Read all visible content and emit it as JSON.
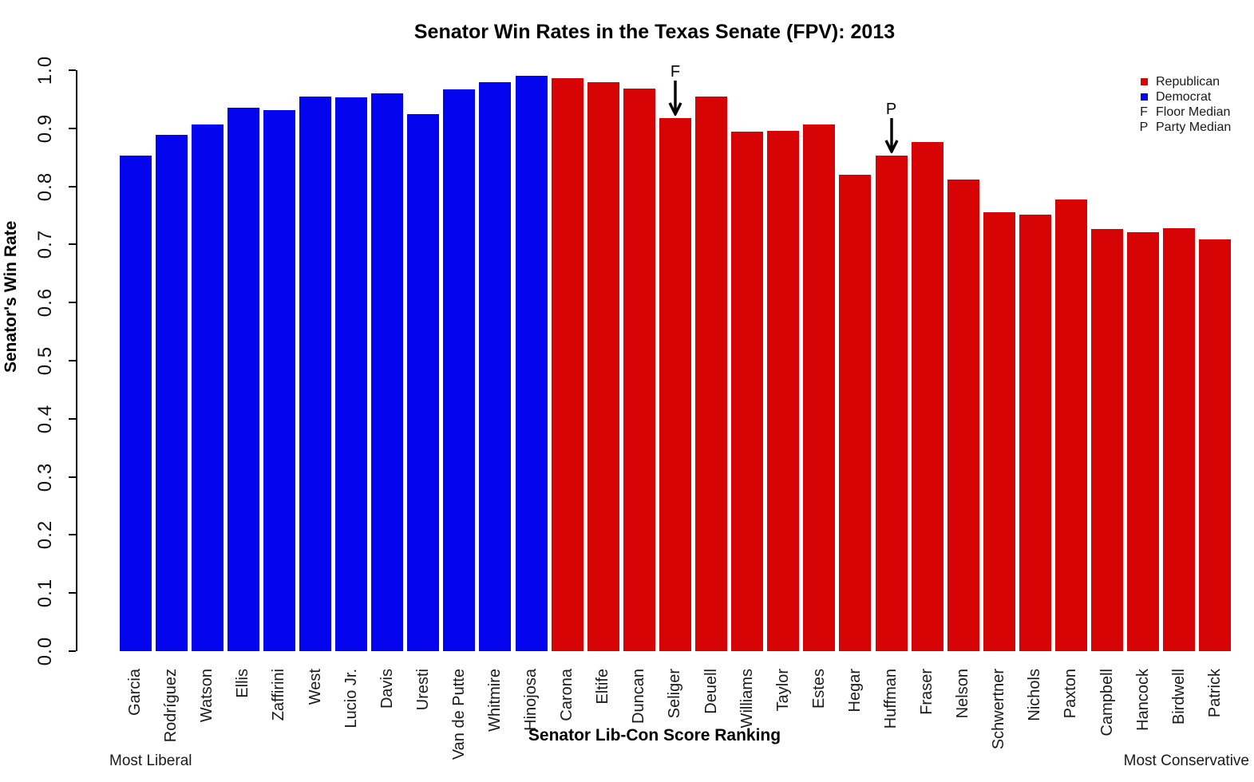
{
  "title": "Senator Win Rates in the Texas Senate (FPV): 2013",
  "axes": {
    "y_label": "Senator's Win Rate",
    "x_label": "Senator Lib-Con Score Ranking",
    "x_left_note": "Most Liberal",
    "x_right_note": "Most Conservative",
    "y_ticks": [
      "0.0",
      "0.1",
      "0.2",
      "0.3",
      "0.4",
      "0.5",
      "0.6",
      "0.7",
      "0.8",
      "0.9",
      "1.0"
    ]
  },
  "legend": {
    "items": [
      {
        "symbol": "swatch",
        "color": "#D60404",
        "label": "Republican"
      },
      {
        "symbol": "swatch",
        "color": "#0404EE",
        "label": "Democrat"
      },
      {
        "symbol": "F",
        "color": "",
        "label": "Floor Median"
      },
      {
        "symbol": "P",
        "color": "",
        "label": "Party Median"
      }
    ]
  },
  "colors": {
    "Republican": "#D60404",
    "Democrat": "#0404EE"
  },
  "chart_data": {
    "type": "bar",
    "title": "Senator Win Rates in the Texas Senate (FPV): 2013",
    "xlabel": "Senator Lib-Con Score Ranking",
    "ylabel": "Senator's Win Rate",
    "ylim": [
      0.0,
      1.0
    ],
    "grid": false,
    "legend_position": "top-right",
    "categories": [
      "Garcia",
      "Rodríguez",
      "Watson",
      "Ellis",
      "Zaffirini",
      "West",
      "Lucio Jr.",
      "Davis",
      "Uresti",
      "Van de Putte",
      "Whitmire",
      "Hinojosa",
      "Carona",
      "Eltife",
      "Duncan",
      "Seliger",
      "Deuell",
      "Williams",
      "Taylor",
      "Estes",
      "Hegar",
      "Huffman",
      "Fraser",
      "Nelson",
      "Schwertner",
      "Nichols",
      "Paxton",
      "Campbell",
      "Hancock",
      "Birdwell",
      "Patrick"
    ],
    "values": [
      0.853,
      0.889,
      0.907,
      0.936,
      0.932,
      0.955,
      0.953,
      0.96,
      0.925,
      0.967,
      0.979,
      0.99,
      0.986,
      0.979,
      0.968,
      0.917,
      0.955,
      0.894,
      0.896,
      0.907,
      0.82,
      0.853,
      0.876,
      0.812,
      0.756,
      0.752,
      0.778,
      0.726,
      0.721,
      0.728,
      0.709
    ],
    "parties": [
      "Democrat",
      "Democrat",
      "Democrat",
      "Democrat",
      "Democrat",
      "Democrat",
      "Democrat",
      "Democrat",
      "Democrat",
      "Democrat",
      "Democrat",
      "Democrat",
      "Republican",
      "Republican",
      "Republican",
      "Republican",
      "Republican",
      "Republican",
      "Republican",
      "Republican",
      "Republican",
      "Republican",
      "Republican",
      "Republican",
      "Republican",
      "Republican",
      "Republican",
      "Republican",
      "Republican",
      "Republican",
      "Republican"
    ],
    "annotations": [
      {
        "letter": "F",
        "meaning": "Floor Median",
        "target": "Seliger",
        "target_index": 15
      },
      {
        "letter": "P",
        "meaning": "Party Median",
        "target": "Huffman",
        "target_index": 21
      }
    ]
  }
}
